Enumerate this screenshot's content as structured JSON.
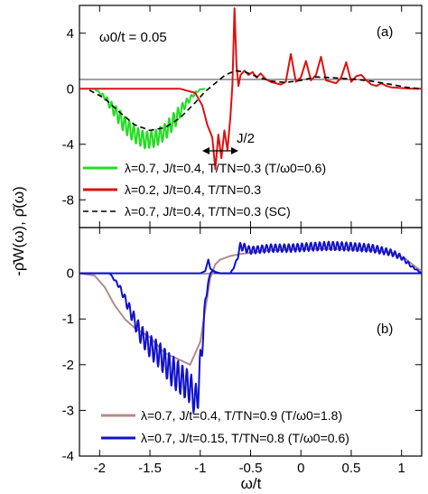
{
  "chart_data": [
    {
      "type": "line",
      "panel_label": "(a)",
      "annotation": "ω0/t = 0.05",
      "arrow_label": "J/2",
      "xlim": [
        -2.2,
        1.2
      ],
      "ylim": [
        -10,
        6
      ],
      "yticks": [
        4,
        0,
        -4,
        -8
      ],
      "ytick_labels": [
        "4",
        "0",
        "-4",
        "-8"
      ],
      "legend": [
        "λ=0.7, J/t=0.4, T/TN=0.3 (T/ω0=0.6)",
        "λ=0.2, J/t=0.4, T/TN=0.3",
        "λ=0.7, J/t=0.4, T/TN=0.3 (SC)"
      ],
      "series": [
        {
          "name": "λ=0.7, J/t=0.4, T/TN=0.3 (T/ω0=0.6)",
          "color": "#22dd22",
          "style": "solid",
          "x": [
            -2.05,
            -1.95,
            -1.85,
            -1.75,
            -1.65,
            -1.55,
            -1.45,
            -1.35,
            -1.25,
            -1.15,
            -1.05,
            -1.0,
            -0.95
          ],
          "y": [
            0,
            -0.6,
            -1.6,
            -2.6,
            -3.3,
            -3.7,
            -3.6,
            -3.1,
            -2.2,
            -1.1,
            -0.3,
            -0.05,
            0
          ]
        },
        {
          "name": "λ=0.2, J/t=0.4, T/TN=0.3",
          "color": "#dd1111",
          "style": "solid",
          "x": [
            -2.2,
            -1.8,
            -1.4,
            -1.2,
            -1.05,
            -0.98,
            -0.93,
            -0.88,
            -0.85,
            -0.82,
            -0.79,
            -0.76,
            -0.73,
            -0.7,
            -0.68,
            -0.66,
            -0.64,
            -0.62,
            -0.6,
            -0.56,
            -0.52,
            -0.48,
            -0.44,
            -0.4,
            -0.35,
            -0.3,
            -0.25,
            -0.2,
            -0.15,
            -0.1,
            -0.05,
            0.0,
            0.05,
            0.1,
            0.15,
            0.2,
            0.25,
            0.3,
            0.35,
            0.4,
            0.45,
            0.5,
            0.55,
            0.6,
            0.65,
            0.7,
            0.75,
            0.8,
            0.85,
            0.9,
            1.0,
            1.1,
            1.2
          ],
          "y": [
            0,
            0,
            0,
            0,
            -0.3,
            -1.2,
            -2.6,
            -3.5,
            -5.8,
            -3.3,
            -5.0,
            -3.0,
            -4.4,
            -2.0,
            0.3,
            5.8,
            1.7,
            0.2,
            1.0,
            1.3,
            1.0,
            1.2,
            0.8,
            1.1,
            0.7,
            0.5,
            0.4,
            0.3,
            0.5,
            2.5,
            0.5,
            0.8,
            2.0,
            0.6,
            1.0,
            2.3,
            0.6,
            0.5,
            0.4,
            0.8,
            1.9,
            0.5,
            0.9,
            1.0,
            0.6,
            0.3,
            0.2,
            0.4,
            0.2,
            0.1,
            0.05,
            0,
            0
          ]
        },
        {
          "name": "λ=0.7, J/t=0.4, T/TN=0.3 (SC)",
          "color": "#000000",
          "style": "dashed",
          "x": [
            -2.1,
            -1.95,
            -1.8,
            -1.65,
            -1.5,
            -1.35,
            -1.2,
            -1.05,
            -0.95,
            -0.85,
            -0.75,
            -0.65,
            -0.55,
            -0.45,
            -0.3,
            -0.15,
            0.0,
            0.15,
            0.3,
            0.5,
            0.7,
            0.9,
            1.05,
            1.2
          ],
          "y": [
            -0.1,
            -0.7,
            -1.7,
            -2.6,
            -3.0,
            -2.8,
            -2.1,
            -1.0,
            -0.2,
            0.4,
            1.0,
            1.3,
            1.2,
            0.9,
            0.55,
            0.45,
            0.6,
            0.85,
            0.8,
            0.7,
            0.55,
            0.3,
            0.1,
            0
          ]
        }
      ]
    },
    {
      "type": "line",
      "panel_label": "(b)",
      "xlabel": "ω/t",
      "xlim": [
        -2.2,
        1.2
      ],
      "ylim": [
        -4,
        1
      ],
      "xticks": [
        -2,
        -1.5,
        -1,
        -0.5,
        0,
        0.5,
        1
      ],
      "xtick_labels": [
        "-2",
        "-1.5",
        "-1",
        "-0.5",
        "0",
        "0.5",
        "1"
      ],
      "yticks": [
        0,
        -1,
        -2,
        -3,
        -4
      ],
      "ytick_labels": [
        "0",
        "-1",
        "-2",
        "-3",
        "-4"
      ],
      "legend": [
        "λ=0.7, J/t=0.4,   T/TN=0.9 (T/ω0=1.8)",
        "λ=0.7, J/t=0.15, T/TN=0.8 (T/ω0=0.6)"
      ],
      "series": [
        {
          "name": "λ=0.7, J/t=0.4,   T/TN=0.9 (T/ω0=1.8)",
          "color": "#b08c8c",
          "style": "solid",
          "x": [
            -2.2,
            -2.05,
            -1.95,
            -1.85,
            -1.75,
            -1.65,
            -1.5,
            -1.35,
            -1.2,
            -1.1,
            -1.0,
            -0.95,
            -0.9,
            -0.85,
            -0.8,
            -0.7,
            -0.6,
            -0.5,
            -0.3,
            -0.1,
            0.1,
            0.3,
            0.5,
            0.7,
            0.9,
            1.05,
            1.15,
            1.2
          ],
          "y": [
            0,
            -0.05,
            -0.3,
            -0.7,
            -1.0,
            -1.2,
            -1.4,
            -1.75,
            -1.9,
            -2.0,
            -1.5,
            -0.8,
            -0.1,
            0.2,
            0.3,
            0.38,
            0.42,
            0.45,
            0.5,
            0.52,
            0.53,
            0.53,
            0.52,
            0.5,
            0.45,
            0.3,
            0.12,
            0.05
          ]
        },
        {
          "name": "λ=0.7, J/t=0.15, T/TN=0.8 (T/ω0=0.6)",
          "color": "#1111cc",
          "style": "solid",
          "x": [
            -2.2,
            -1.9,
            -1.8,
            -1.7,
            -1.6,
            -1.5,
            -1.4,
            -1.3,
            -1.2,
            -1.1,
            -1.05,
            -1.02,
            -1.0,
            -0.97,
            -0.95,
            -0.92,
            -0.9,
            -0.88,
            -0.85,
            -0.8,
            -0.7,
            -0.65,
            -0.6,
            -0.55,
            -0.5,
            -0.3,
            -0.1,
            0.1,
            0.3,
            0.5,
            0.7,
            0.9,
            1.0,
            1.1,
            1.2
          ],
          "y": [
            0,
            0,
            -0.3,
            -0.8,
            -1.3,
            -1.6,
            -1.8,
            -2.1,
            -2.3,
            -2.5,
            -2.8,
            -2.6,
            -2.0,
            -1.3,
            -0.6,
            -0.2,
            0,
            0.05,
            0.02,
            0,
            0,
            0.2,
            0.6,
            0.55,
            0.5,
            0.55,
            0.55,
            0.58,
            0.6,
            0.58,
            0.55,
            0.45,
            0.35,
            0.15,
            0
          ]
        },
        {
          "name": "",
          "color": "#1111cc",
          "style": "solid",
          "x": [
            -2.2,
            -1.5,
            -1.0,
            -0.95,
            -0.92,
            -0.9,
            -0.85,
            -0.8,
            -0.7,
            -0.5,
            0,
            0.5,
            1.0,
            1.2
          ],
          "y": [
            0,
            0,
            0,
            0.05,
            0.3,
            0.1,
            0.03,
            0,
            0,
            0,
            0,
            0,
            0,
            0
          ]
        }
      ]
    }
  ],
  "ylabel": "-ρ̄W(ω),  ρ̄(ω)"
}
